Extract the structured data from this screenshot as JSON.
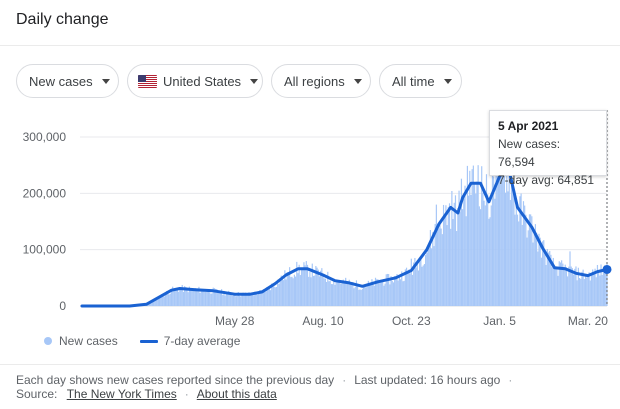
{
  "header": {
    "title": "Daily change"
  },
  "filters": [
    {
      "label": "New cases"
    },
    {
      "label": "United States",
      "flag": "us-flag-icon"
    },
    {
      "label": "All regions"
    },
    {
      "label": "All time"
    }
  ],
  "colors": {
    "bars": "#a7c7f7",
    "line": "#1a62d2",
    "grid": "#e8eaed",
    "axis_text": "#5f6368"
  },
  "tooltip": {
    "date": "5 Apr 2021",
    "new_cases": "New cases: 76,594",
    "avg": "7-day avg: 64,851"
  },
  "legend": {
    "bars_label": "New cases",
    "line_label": "7-day average"
  },
  "footer": {
    "note": "Each day shows new cases reported since the previous day",
    "updated": "Last updated: 16 hours ago",
    "source_label": "Source:",
    "source_link": "The New York Times",
    "about_link": "About this data"
  },
  "chart_data": {
    "type": "bar",
    "title": "Daily change",
    "xlabel": "",
    "ylabel": "",
    "ylim": [
      0,
      300000
    ],
    "yticks": [
      0,
      100000,
      200000,
      300000
    ],
    "ytick_labels": [
      "0",
      "100,000",
      "200,000",
      "300,000"
    ],
    "xtick_labels": [
      "May 28",
      "Aug. 10",
      "Oct. 23",
      "Jan. 5",
      "Mar. 20"
    ],
    "xtick_dates": [
      "2020-05-28",
      "2020-08-10",
      "2020-10-23",
      "2021-01-05",
      "2021-03-20"
    ],
    "grid": true,
    "legend_position": "bottom-left",
    "date_range": [
      "2020-01-21",
      "2021-04-05"
    ],
    "series": [
      {
        "name": "7-day average",
        "type": "line",
        "points": [
          [
            "2020-01-21",
            0
          ],
          [
            "2020-03-01",
            0
          ],
          [
            "2020-03-15",
            3000
          ],
          [
            "2020-03-25",
            15000
          ],
          [
            "2020-04-05",
            28000
          ],
          [
            "2020-04-12",
            31000
          ],
          [
            "2020-04-25",
            29000
          ],
          [
            "2020-05-10",
            27000
          ],
          [
            "2020-05-28",
            21000
          ],
          [
            "2020-06-10",
            21000
          ],
          [
            "2020-06-20",
            25000
          ],
          [
            "2020-07-01",
            40000
          ],
          [
            "2020-07-10",
            55000
          ],
          [
            "2020-07-20",
            66000
          ],
          [
            "2020-07-28",
            66000
          ],
          [
            "2020-08-10",
            55000
          ],
          [
            "2020-08-20",
            45000
          ],
          [
            "2020-09-01",
            41000
          ],
          [
            "2020-09-12",
            35000
          ],
          [
            "2020-09-25",
            43000
          ],
          [
            "2020-10-10",
            50000
          ],
          [
            "2020-10-23",
            63000
          ],
          [
            "2020-11-05",
            100000
          ],
          [
            "2020-11-15",
            145000
          ],
          [
            "2020-11-25",
            175000
          ],
          [
            "2020-12-01",
            165000
          ],
          [
            "2020-12-05",
            192000
          ],
          [
            "2020-12-12",
            218000
          ],
          [
            "2020-12-20",
            218000
          ],
          [
            "2020-12-27",
            185000
          ],
          [
            "2021-01-05",
            230000
          ],
          [
            "2021-01-09",
            250000
          ],
          [
            "2021-01-13",
            240000
          ],
          [
            "2021-01-20",
            175000
          ],
          [
            "2021-02-01",
            140000
          ],
          [
            "2021-02-10",
            103000
          ],
          [
            "2021-02-20",
            68000
          ],
          [
            "2021-03-01",
            66000
          ],
          [
            "2021-03-10",
            58000
          ],
          [
            "2021-03-20",
            54000
          ],
          [
            "2021-03-28",
            61000
          ],
          [
            "2021-04-05",
            64851
          ]
        ]
      },
      {
        "name": "New cases",
        "type": "bar",
        "points": [
          [
            "2020-10-23",
            84000
          ],
          [
            "2020-11-13",
            180000
          ],
          [
            "2020-12-04",
            226000
          ],
          [
            "2020-12-11",
            240000
          ],
          [
            "2020-12-18",
            250000
          ],
          [
            "2020-12-31",
            230000
          ],
          [
            "2021-01-02",
            300000
          ],
          [
            "2021-01-08",
            295000
          ],
          [
            "2021-02-05",
            130000
          ],
          [
            "2021-03-05",
            97000
          ],
          [
            "2021-04-05",
            76594
          ]
        ]
      }
    ]
  }
}
